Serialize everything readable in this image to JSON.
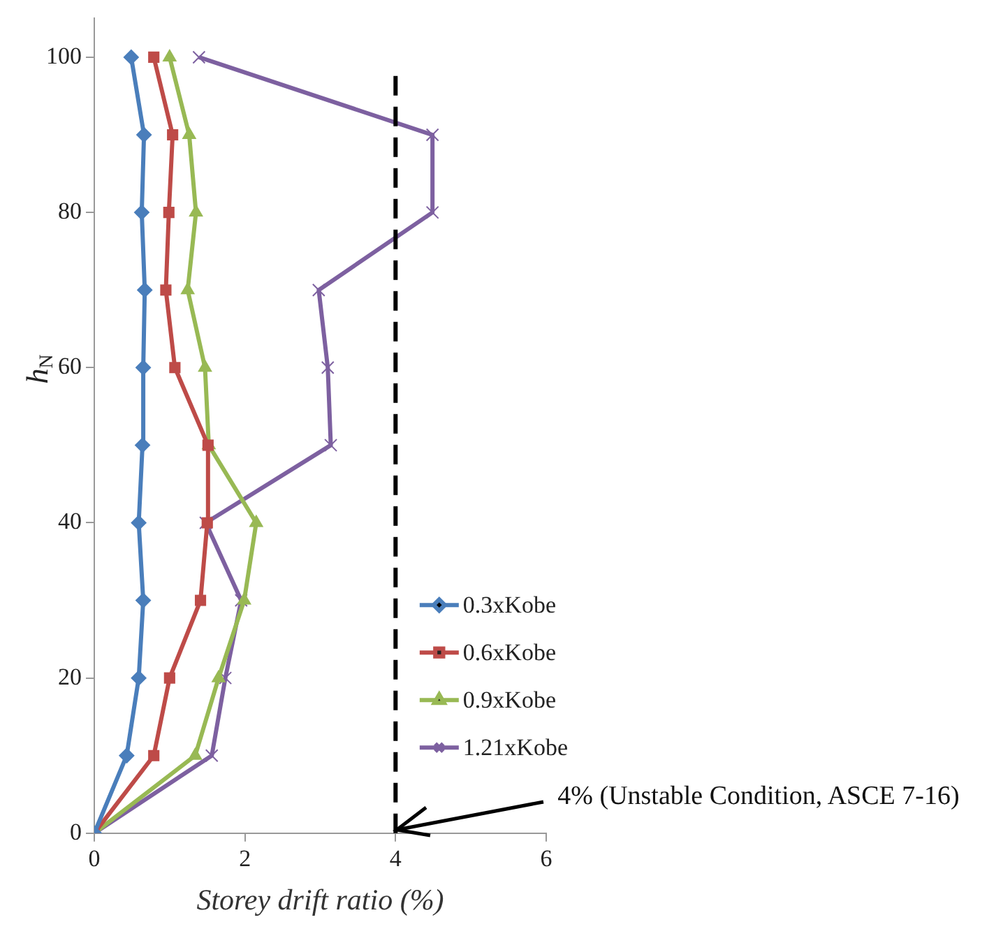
{
  "chart_data": {
    "type": "line",
    "xlabel": "Storey drift ratio (%)",
    "ylabel": "h$_{N}$",
    "xlim": [
      0,
      6
    ],
    "xticks": [
      0,
      2,
      4,
      6
    ],
    "ylim": [
      0,
      105
    ],
    "yticks": [
      0,
      20,
      40,
      60,
      80,
      100
    ],
    "grid": false,
    "legend": "right",
    "series": [
      {
        "name": "0.3xKobe",
        "color": "#4a7ebb",
        "marker": "diamond",
        "x": [
          0,
          0.43,
          0.59,
          0.65,
          0.59,
          0.64,
          0.65,
          0.67,
          0.63,
          0.66,
          0.49
        ],
        "values": [
          0,
          10,
          20,
          30,
          40,
          50,
          60,
          70,
          80,
          90,
          100
        ]
      },
      {
        "name": "0.6xKobe",
        "color": "#be4b48",
        "marker": "square",
        "x": [
          0,
          0.79,
          1.0,
          1.41,
          1.5,
          1.51,
          1.07,
          0.95,
          0.99,
          1.04,
          0.79
        ],
        "values": [
          0,
          10,
          20,
          30,
          40,
          50,
          60,
          70,
          80,
          90,
          100
        ]
      },
      {
        "name": "0.9xKobe",
        "color": "#98b954",
        "marker": "triangle",
        "x": [
          0,
          1.34,
          1.65,
          1.99,
          2.15,
          1.52,
          1.47,
          1.24,
          1.35,
          1.26,
          1.0
        ],
        "values": [
          0,
          10,
          20,
          30,
          40,
          50,
          60,
          70,
          80,
          90,
          100
        ]
      },
      {
        "name": "1.21xKobe",
        "color": "#7d60a0",
        "marker": "cross",
        "x": [
          0,
          1.56,
          1.74,
          1.95,
          1.48,
          3.14,
          3.1,
          2.98,
          4.49,
          4.49,
          1.39
        ],
        "values": [
          0,
          10,
          20,
          30,
          40,
          50,
          60,
          70,
          80,
          90,
          100
        ]
      }
    ],
    "ref_lines": [
      {
        "axis": "x",
        "value": 4,
        "color": "#000000",
        "line_style": "dashed"
      }
    ],
    "annotations": [
      {
        "text": "4% (Unstable Condition, ASCE 7-16)",
        "x": 4,
        "y": 0
      }
    ]
  }
}
